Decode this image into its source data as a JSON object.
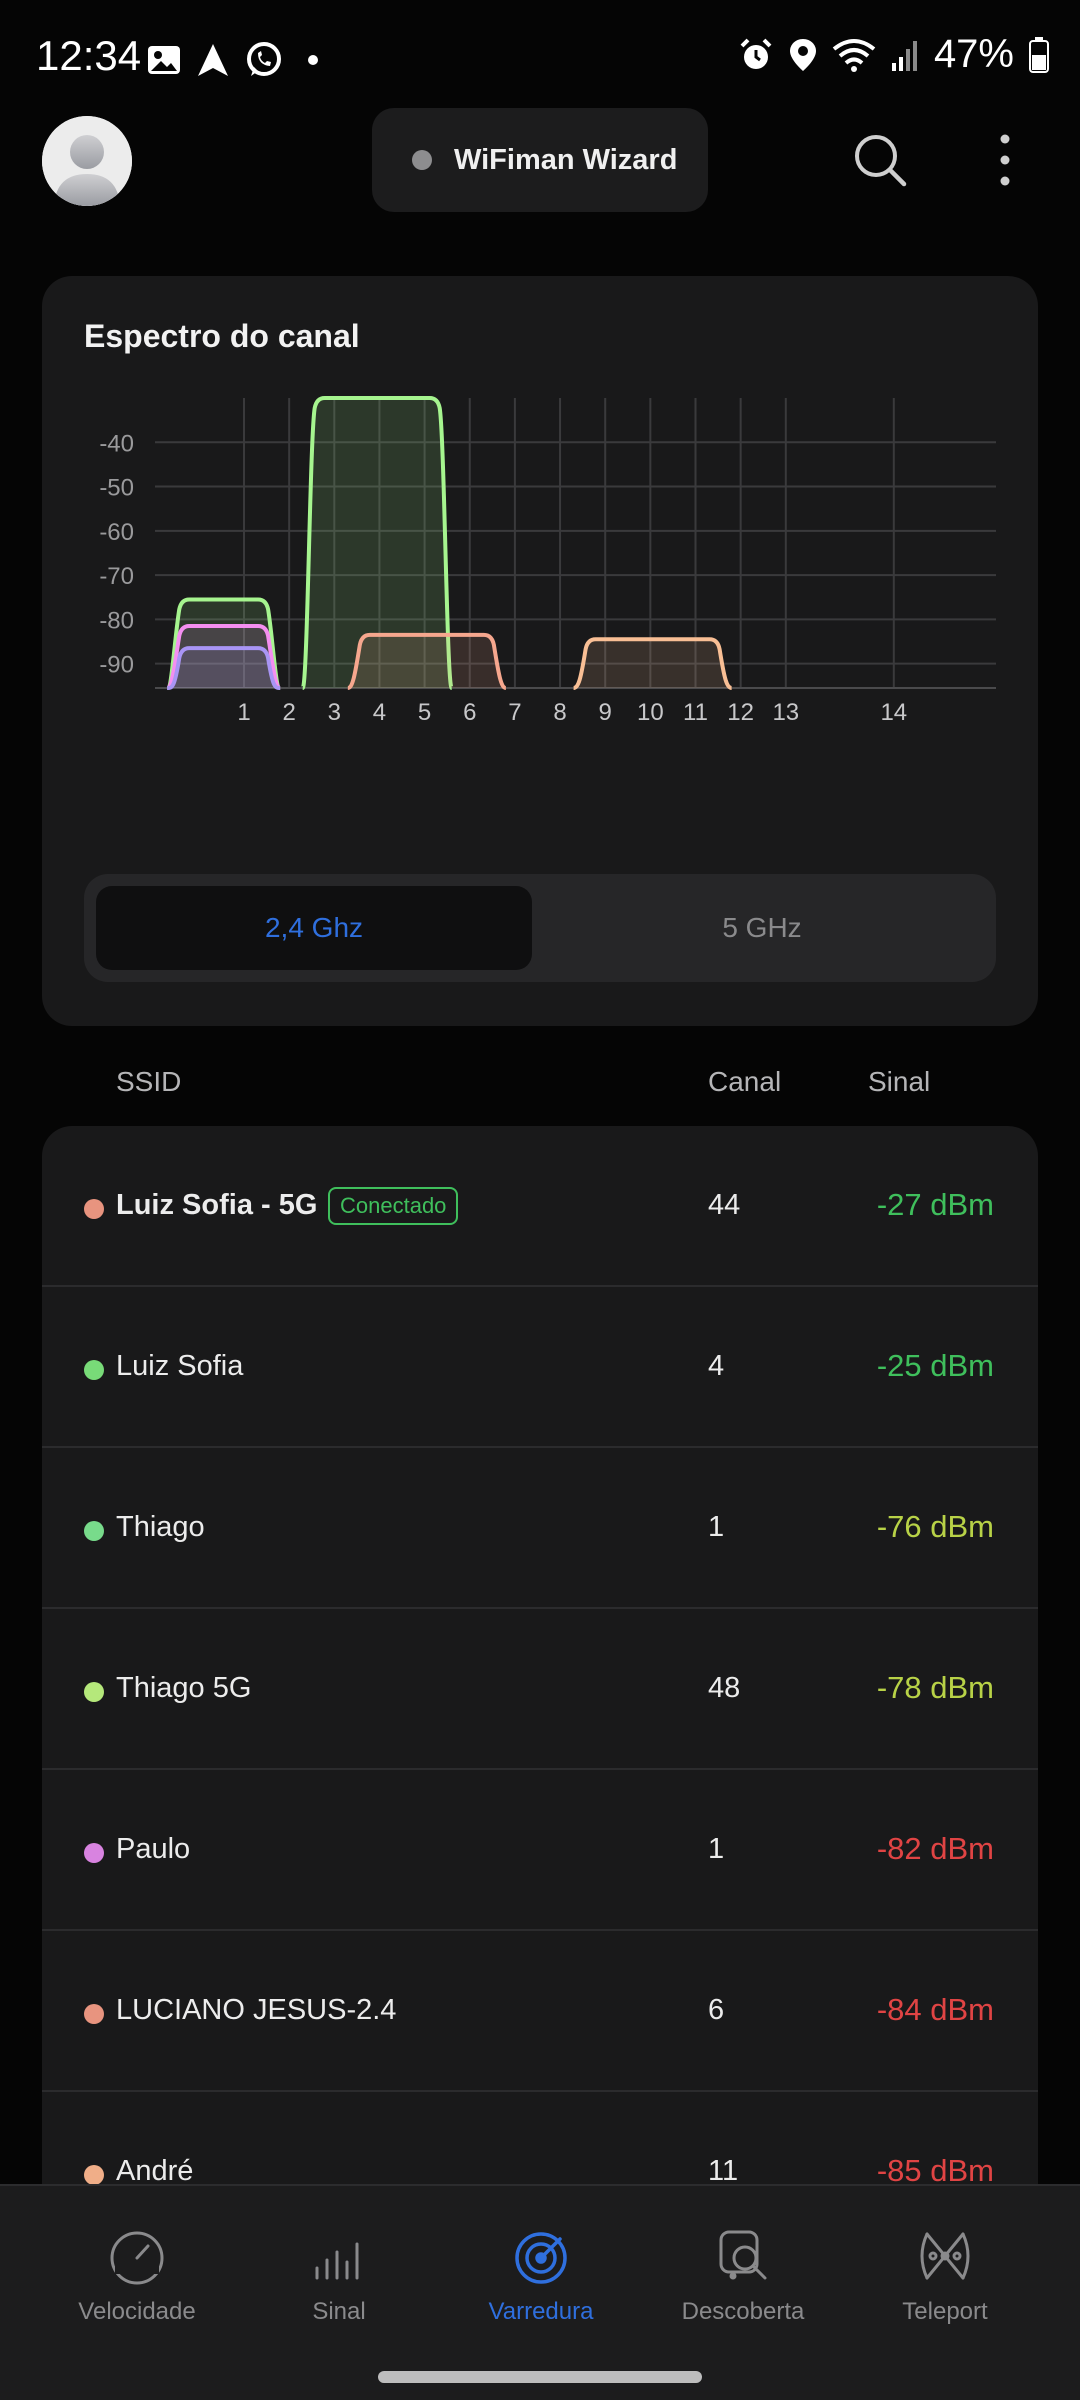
{
  "status_bar": {
    "time": "12:34",
    "battery_percent": "47%",
    "icons_left": [
      "gallery-icon",
      "navigation-icon",
      "whatsapp-icon",
      "dot-icon"
    ],
    "icons_right": [
      "alarm-icon",
      "location-icon",
      "wifi-icon",
      "cell-signal-icon",
      "battery-icon"
    ]
  },
  "header": {
    "wizard_label": "WiFiman Wizard",
    "icons": [
      "avatar",
      "search-icon",
      "more-vert-icon"
    ]
  },
  "spectrum": {
    "title": "Espectro do canal",
    "bands": {
      "band_24": "2,4 Ghz",
      "band_5": "5 GHz",
      "selected": "band_24"
    }
  },
  "chart_data": {
    "type": "area",
    "title": "Espectro do canal",
    "xlabel": "",
    "ylabel": "",
    "ylim": [
      -95.5,
      -30
    ],
    "y_ticks": [
      "-40",
      "-50",
      "-60",
      "-70",
      "-80",
      "-90"
    ],
    "x_ticks": [
      "1",
      "2",
      "3",
      "4",
      "5",
      "6",
      "7",
      "8",
      "9",
      "10",
      "11",
      "12",
      "13",
      "14"
    ],
    "grid": true,
    "series": [
      {
        "color": "#a6f58f",
        "channel_from": 2.3,
        "channel_to": 5.6,
        "peak": -30
      },
      {
        "color": "#a6f58f",
        "channel_from": -0.7,
        "channel_to": 1.8,
        "peak": -75.5
      },
      {
        "color": "#f48ff0",
        "channel_from": -0.7,
        "channel_to": 1.8,
        "peak": -81.5
      },
      {
        "color": "#a995f5",
        "channel_from": -0.7,
        "channel_to": 1.8,
        "peak": -86.5
      },
      {
        "color": "#f6a78e",
        "channel_from": 3.3,
        "channel_to": 6.8,
        "peak": -83.5
      },
      {
        "color": "#f9bf95",
        "channel_from": 8.3,
        "channel_to": 11.8,
        "peak": -84.5
      }
    ]
  },
  "list": {
    "headers": {
      "ssid": "SSID",
      "channel": "Canal",
      "signal": "Sinal"
    },
    "rows": [
      {
        "ssid": "Luiz Sofia - 5G",
        "badge": "Conectado",
        "channel": "44",
        "signal": "-27 dBm",
        "dot_color": "#e8947f",
        "signal_color": "#3fbf5c",
        "bold": true
      },
      {
        "ssid": "Luiz Sofia",
        "badge": "",
        "channel": "4",
        "signal": "-25 dBm",
        "dot_color": "#78db78",
        "signal_color": "#3fbf5c",
        "bold": false
      },
      {
        "ssid": "Thiago",
        "badge": "",
        "channel": "1",
        "signal": "-76 dBm",
        "dot_color": "#78db8b",
        "signal_color": "#b8d247",
        "bold": false
      },
      {
        "ssid": "Thiago 5G",
        "badge": "",
        "channel": "48",
        "signal": "-78 dBm",
        "dot_color": "#b5e87b",
        "signal_color": "#b8d247",
        "bold": false
      },
      {
        "ssid": "Paulo",
        "badge": "",
        "channel": "1",
        "signal": "-82 dBm",
        "dot_color": "#d883e0",
        "signal_color": "#e04444",
        "bold": false
      },
      {
        "ssid": "LUCIANO JESUS-2.4",
        "badge": "",
        "channel": "6",
        "signal": "-84 dBm",
        "dot_color": "#e8947f",
        "signal_color": "#e04444",
        "bold": false
      },
      {
        "ssid": "André",
        "badge": "",
        "channel": "11",
        "signal": "-85 dBm",
        "dot_color": "#f0ae88",
        "signal_color": "#e04444",
        "bold": false
      }
    ]
  },
  "bottom_nav": {
    "items": [
      {
        "label": "Velocidade",
        "icon": "speedometer-icon",
        "active": false
      },
      {
        "label": "Sinal",
        "icon": "signal-bars-icon",
        "active": false
      },
      {
        "label": "Varredura",
        "icon": "radar-icon",
        "active": true
      },
      {
        "label": "Descoberta",
        "icon": "discovery-icon",
        "active": false
      },
      {
        "label": "Teleport",
        "icon": "teleport-icon",
        "active": false
      }
    ]
  }
}
